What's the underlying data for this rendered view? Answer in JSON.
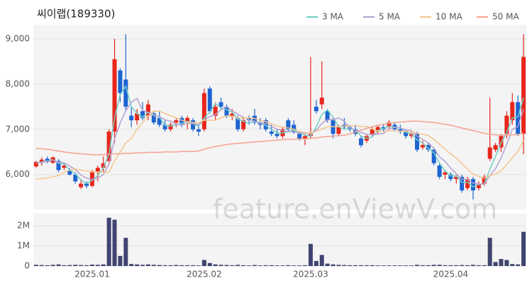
{
  "chart_data": [
    {
      "type": "candlestick",
      "title": "씨이랩(189330)",
      "watermark": "feature.enViewV.com",
      "up_color": "#e8261c",
      "down_color": "#1e64d2",
      "legend": "top-right",
      "grid": true,
      "ylim": [
        5230,
        9310
      ],
      "yticks": [
        {
          "value": 6000,
          "label": "6,000"
        },
        {
          "value": 7000,
          "label": "7,000"
        },
        {
          "value": 8000,
          "label": "8,000"
        },
        {
          "value": 9000,
          "label": "9,000"
        }
      ],
      "open": [
        6180,
        6280,
        6350,
        6260,
        6300,
        6150,
        6100,
        6000,
        5720,
        5800,
        5750,
        6050,
        6150,
        6300,
        6950,
        8300,
        8100,
        7300,
        7200,
        7400,
        7300,
        7350,
        7250,
        7100,
        7000,
        7150,
        7250,
        7150,
        7200,
        7000,
        7000,
        7900,
        7300,
        7600,
        7500,
        7300,
        7250,
        7000,
        7250,
        7300,
        7150,
        7200,
        6950,
        6900,
        6850,
        7200,
        7100,
        6900,
        6800,
        6850,
        7500,
        7550,
        7400,
        7200,
        6900,
        7100,
        7050,
        7000,
        6800,
        6750,
        6900,
        6950,
        7050,
        7050,
        7100,
        7000,
        6950,
        6850,
        6900,
        6600,
        6650,
        6550,
        6200,
        6000,
        6000,
        5900,
        5950,
        5700,
        5900,
        5700,
        5800,
        6350,
        6550,
        6600,
        6900,
        7200,
        7600,
        6900
      ],
      "high": [
        6300,
        6380,
        6400,
        6400,
        6340,
        6250,
        6150,
        6050,
        5900,
        5850,
        6100,
        6200,
        6400,
        7000,
        9000,
        8350,
        9100,
        7500,
        7450,
        7600,
        7650,
        7400,
        7400,
        7200,
        7150,
        7250,
        7300,
        7300,
        7250,
        7100,
        7900,
        7950,
        7600,
        7700,
        7550,
        7450,
        7300,
        7250,
        7300,
        7450,
        7250,
        7250,
        7100,
        7000,
        7050,
        7250,
        7200,
        6950,
        6900,
        8600,
        7650,
        8500,
        7450,
        7250,
        7100,
        7250,
        7100,
        7100,
        6850,
        6900,
        7050,
        7100,
        7100,
        7200,
        7150,
        7100,
        7000,
        6950,
        6950,
        6750,
        6700,
        6600,
        6250,
        6100,
        6050,
        6000,
        6000,
        5950,
        5950,
        5850,
        6000,
        7700,
        6700,
        6900,
        7400,
        7800,
        7750,
        9100
      ],
      "low": [
        6150,
        6200,
        6250,
        6240,
        6050,
        6100,
        5980,
        5800,
        5680,
        5700,
        5720,
        5850,
        6050,
        6250,
        6700,
        7600,
        7400,
        7050,
        7100,
        7200,
        7200,
        7100,
        7050,
        6950,
        6950,
        7050,
        7050,
        7000,
        6950,
        6850,
        6950,
        7350,
        7200,
        7450,
        7250,
        7200,
        6950,
        6950,
        7100,
        7100,
        7000,
        6950,
        6850,
        6800,
        6800,
        6950,
        6900,
        6750,
        6650,
        6800,
        7350,
        7450,
        7150,
        6800,
        6850,
        7000,
        6950,
        6850,
        6600,
        6700,
        6850,
        6900,
        6950,
        7000,
        6950,
        6900,
        6800,
        6800,
        6500,
        6550,
        6500,
        6200,
        5900,
        5900,
        5850,
        5800,
        5600,
        5650,
        5450,
        5650,
        5750,
        6300,
        6500,
        6500,
        6800,
        7100,
        6850,
        6450
      ],
      "close": [
        6280,
        6330,
        6280,
        6380,
        6100,
        6200,
        6000,
        5850,
        5800,
        5750,
        6050,
        6150,
        6250,
        6950,
        8550,
        7800,
        7500,
        7200,
        7350,
        7250,
        7550,
        7150,
        7100,
        7000,
        7100,
        7200,
        7100,
        7250,
        7000,
        6950,
        7800,
        7400,
        7500,
        7500,
        7300,
        7350,
        7000,
        7200,
        7200,
        7150,
        7100,
        7000,
        6900,
        6850,
        7000,
        7000,
        6950,
        6800,
        6850,
        6900,
        7400,
        7700,
        7200,
        6900,
        7050,
        7050,
        7000,
        6900,
        6650,
        6850,
        7000,
        7050,
        7000,
        7150,
        7000,
        6950,
        6850,
        6900,
        6550,
        6650,
        6550,
        6250,
        5950,
        6050,
        5900,
        5950,
        5650,
        5900,
        5650,
        5800,
        5950,
        6600,
        6650,
        6850,
        7300,
        7600,
        6900,
        8600
      ],
      "series": [
        {
          "name": "3 MA",
          "color": "#6fcfc6",
          "values": [
            6250,
            6280,
            6300,
            6330,
            6250,
            6230,
            6100,
            6020,
            5880,
            5800,
            5870,
            5980,
            6150,
            6450,
            7250,
            7770,
            7950,
            7500,
            7350,
            7270,
            7380,
            7320,
            7270,
            7080,
            7070,
            7100,
            7130,
            7180,
            7120,
            7070,
            7250,
            7380,
            7570,
            7470,
            7430,
            7380,
            7220,
            7180,
            7130,
            7180,
            7150,
            7080,
            7000,
            6920,
            6920,
            6950,
            6980,
            6920,
            6870,
            6850,
            7050,
            7330,
            7430,
            7270,
            7050,
            7000,
            7030,
            6980,
            6850,
            6800,
            6830,
            6970,
            7020,
            7070,
            7050,
            7030,
            6930,
            6900,
            6770,
            6700,
            6580,
            6480,
            6250,
            6080,
            5970,
            5970,
            5830,
            5830,
            5730,
            5780,
            5800,
            6120,
            6400,
            6700,
            6930,
            7250,
            7270,
            7700
          ]
        },
        {
          "name": "5 MA",
          "color": "#b3a0d2",
          "values": [
            6250,
            6270,
            6290,
            6320,
            6270,
            6260,
            6190,
            6110,
            5990,
            5920,
            5890,
            5920,
            6000,
            6230,
            6790,
            7140,
            7410,
            7600,
            7680,
            7420,
            7370,
            7300,
            7280,
            7210,
            7180,
            7110,
            7100,
            7130,
            7130,
            7100,
            7220,
            7280,
            7330,
            7430,
            7500,
            7410,
            7330,
            7270,
            7210,
            7180,
            7130,
            7130,
            7070,
            7000,
            6970,
            6950,
            6940,
            6920,
            6920,
            6900,
            6980,
            7130,
            7210,
            7220,
            7250,
            7180,
            7040,
            6980,
            6930,
            6890,
            6880,
            6890,
            6910,
            7010,
            7040,
            7030,
            6990,
            6970,
            6850,
            6780,
            6700,
            6580,
            6390,
            6290,
            6140,
            6020,
            5900,
            5890,
            5810,
            5790,
            5790,
            5980,
            6130,
            6370,
            6670,
            7000,
            7060,
            7450
          ]
        },
        {
          "name": "10 MA",
          "color": "#f5c68e",
          "values": [
            5900,
            5910,
            5920,
            5950,
            5980,
            6050,
            6100,
            6120,
            6100,
            6080,
            6060,
            6060,
            6050,
            6050,
            6300,
            6500,
            6700,
            6800,
            7000,
            7150,
            7300,
            7400,
            7400,
            7350,
            7300,
            7250,
            7200,
            7150,
            7150,
            7140,
            7200,
            7200,
            7200,
            7250,
            7300,
            7280,
            7250,
            7250,
            7250,
            7240,
            7200,
            7170,
            7120,
            7070,
            7050,
            7030,
            7000,
            6950,
            6930,
            6910,
            6960,
            7010,
            7050,
            7060,
            7070,
            7070,
            7080,
            7080,
            7060,
            7060,
            7010,
            6960,
            6950,
            6970,
            6970,
            6960,
            6960,
            6940,
            6910,
            6890,
            6860,
            6780,
            6670,
            6560,
            6460,
            6360,
            6240,
            6120,
            6010,
            5960,
            5920,
            5980,
            6010,
            6080,
            6220,
            6370,
            6510,
            6750
          ]
        },
        {
          "name": "50 MA",
          "color": "#f4a28f",
          "values": [
            6580,
            6570,
            6560,
            6540,
            6520,
            6500,
            6480,
            6470,
            6460,
            6450,
            6440,
            6440,
            6440,
            6450,
            6460,
            6460,
            6470,
            6470,
            6480,
            6480,
            6490,
            6490,
            6490,
            6500,
            6500,
            6500,
            6510,
            6510,
            6510,
            6520,
            6560,
            6590,
            6620,
            6640,
            6660,
            6680,
            6690,
            6700,
            6710,
            6720,
            6730,
            6740,
            6750,
            6760,
            6770,
            6780,
            6780,
            6790,
            6790,
            6800,
            6810,
            6830,
            6840,
            6850,
            6860,
            6870,
            6900,
            6940,
            6980,
            7020,
            7060,
            7090,
            7110,
            7130,
            7150,
            7160,
            7170,
            7180,
            7180,
            7170,
            7160,
            7150,
            7130,
            7110,
            7090,
            7060,
            7030,
            7000,
            6970,
            6940,
            6910,
            6890,
            6880,
            6870,
            6870,
            6880,
            6880,
            6920
          ]
        }
      ]
    },
    {
      "type": "bar",
      "color": "#3f4470",
      "ylim": [
        0,
        2600000
      ],
      "yticks": [
        0,
        {
          "value": 1000000,
          "label": "1M"
        },
        {
          "value": 2000000,
          "label": "2M"
        }
      ],
      "categories": [
        null,
        null,
        null,
        null,
        null,
        null,
        null,
        null,
        null,
        null,
        "2025.01",
        null,
        null,
        null,
        null,
        null,
        null,
        null,
        null,
        null,
        null,
        null,
        null,
        null,
        null,
        null,
        null,
        null,
        null,
        null,
        "2025.02",
        null,
        null,
        null,
        null,
        null,
        null,
        null,
        null,
        null,
        null,
        null,
        null,
        null,
        null,
        null,
        null,
        null,
        null,
        "2025.03",
        null,
        null,
        null,
        null,
        null,
        null,
        null,
        null,
        null,
        null,
        null,
        null,
        null,
        null,
        null,
        null,
        null,
        null,
        null,
        null,
        null,
        null,
        null,
        null,
        "2025.04",
        null,
        null,
        null,
        null,
        null,
        null,
        null,
        null,
        null,
        null,
        null,
        null,
        null
      ],
      "values": [
        60000,
        50000,
        40000,
        60000,
        80000,
        40000,
        50000,
        60000,
        50000,
        40000,
        70000,
        60000,
        80000,
        2400000,
        2300000,
        500000,
        1400000,
        100000,
        80000,
        60000,
        80000,
        60000,
        50000,
        40000,
        40000,
        50000,
        40000,
        40000,
        40000,
        30000,
        300000,
        150000,
        80000,
        60000,
        50000,
        40000,
        60000,
        40000,
        30000,
        50000,
        30000,
        40000,
        40000,
        30000,
        30000,
        40000,
        30000,
        30000,
        40000,
        1100000,
        250000,
        550000,
        120000,
        80000,
        60000,
        50000,
        40000,
        40000,
        40000,
        40000,
        40000,
        30000,
        30000,
        30000,
        30000,
        30000,
        30000,
        30000,
        60000,
        40000,
        40000,
        60000,
        60000,
        40000,
        40000,
        40000,
        50000,
        40000,
        60000,
        40000,
        40000,
        1400000,
        200000,
        350000,
        300000,
        100000,
        80000,
        1700000
      ]
    }
  ]
}
